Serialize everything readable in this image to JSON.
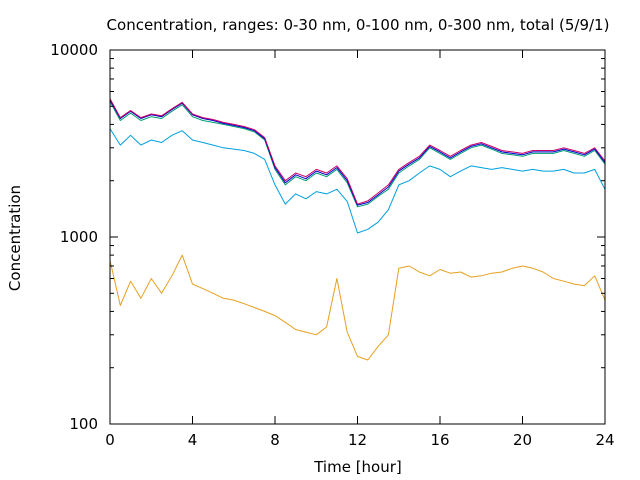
{
  "chart_data": {
    "type": "line",
    "title": "Concentration, ranges: 0-30 nm, 0-100 nm, 0-300 nm, total (5/9/1)",
    "xlabel": "Time [hour]",
    "ylabel": "Concentration",
    "xlim": [
      0,
      24
    ],
    "ylim": [
      100,
      10000
    ],
    "yscale": "log",
    "grid": false,
    "xticks": [
      0,
      4,
      8,
      12,
      16,
      20,
      24
    ],
    "xtick_labels": [
      "0",
      "4",
      "8",
      "12",
      "16",
      "20",
      "24"
    ],
    "yticks": [
      100,
      1000,
      10000
    ],
    "ytick_labels": [
      "100",
      "1000",
      "10000"
    ],
    "x": [
      0,
      0.5,
      1,
      1.5,
      2,
      2.5,
      3,
      3.5,
      4,
      4.5,
      5,
      5.5,
      6,
      6.5,
      7,
      7.5,
      8,
      8.5,
      9,
      9.5,
      10,
      10.5,
      11,
      11.5,
      12,
      12.5,
      13,
      13.5,
      14,
      14.5,
      15,
      15.5,
      16,
      16.5,
      17,
      17.5,
      18,
      18.5,
      19,
      19.5,
      20,
      20.5,
      21,
      21.5,
      22,
      22.5,
      23,
      23.5,
      24
    ],
    "series": [
      {
        "color": "#e6a020",
        "values": [
          750,
          430,
          580,
          470,
          600,
          500,
          620,
          800,
          560,
          530,
          500,
          470,
          460,
          440,
          420,
          400,
          380,
          350,
          320,
          310,
          300,
          330,
          600,
          310,
          230,
          220,
          260,
          300,
          680,
          700,
          650,
          620,
          670,
          640,
          650,
          610,
          620,
          640,
          650,
          680,
          700,
          680,
          650,
          600,
          580,
          560,
          550,
          620,
          460
        ]
      },
      {
        "color": "#00a0e0",
        "values": [
          3800,
          3100,
          3500,
          3100,
          3300,
          3200,
          3500,
          3700,
          3300,
          3200,
          3100,
          3000,
          2950,
          2900,
          2800,
          2600,
          1900,
          1500,
          1700,
          1600,
          1750,
          1700,
          1800,
          1550,
          1050,
          1100,
          1200,
          1400,
          1900,
          2000,
          2200,
          2400,
          2300,
          2100,
          2250,
          2400,
          2350,
          2300,
          2350,
          2300,
          2250,
          2300,
          2250,
          2250,
          2300,
          2200,
          2200,
          2300,
          1800
        ]
      },
      {
        "color": "#009e73",
        "values": [
          5300,
          4200,
          4600,
          4200,
          4400,
          4300,
          4700,
          5100,
          4400,
          4200,
          4100,
          4000,
          3900,
          3800,
          3650,
          3300,
          2300,
          1900,
          2100,
          2000,
          2200,
          2100,
          2300,
          1950,
          1450,
          1500,
          1650,
          1800,
          2200,
          2400,
          2600,
          3000,
          2800,
          2600,
          2800,
          3000,
          3100,
          2950,
          2800,
          2750,
          2700,
          2800,
          2800,
          2800,
          2900,
          2800,
          2700,
          2900,
          2450
        ]
      },
      {
        "color": "#0000cc",
        "values": [
          5400,
          4300,
          4700,
          4300,
          4500,
          4400,
          4800,
          5200,
          4500,
          4300,
          4200,
          4050,
          3950,
          3850,
          3700,
          3350,
          2350,
          1950,
          2150,
          2050,
          2250,
          2150,
          2350,
          2000,
          1480,
          1530,
          1680,
          1850,
          2250,
          2450,
          2650,
          3050,
          2850,
          2650,
          2850,
          3050,
          3150,
          3000,
          2850,
          2800,
          2750,
          2850,
          2850,
          2850,
          2950,
          2850,
          2750,
          2950,
          2500
        ]
      },
      {
        "color": "#cc0066",
        "values": [
          5500,
          4350,
          4750,
          4350,
          4550,
          4450,
          4850,
          5250,
          4550,
          4350,
          4250,
          4100,
          4000,
          3900,
          3750,
          3400,
          2400,
          2000,
          2200,
          2100,
          2300,
          2200,
          2400,
          2050,
          1500,
          1560,
          1720,
          1900,
          2300,
          2500,
          2700,
          3100,
          2900,
          2700,
          2900,
          3100,
          3200,
          3050,
          2900,
          2850,
          2800,
          2900,
          2900,
          2900,
          3000,
          2900,
          2800,
          3000,
          2550
        ]
      }
    ]
  }
}
